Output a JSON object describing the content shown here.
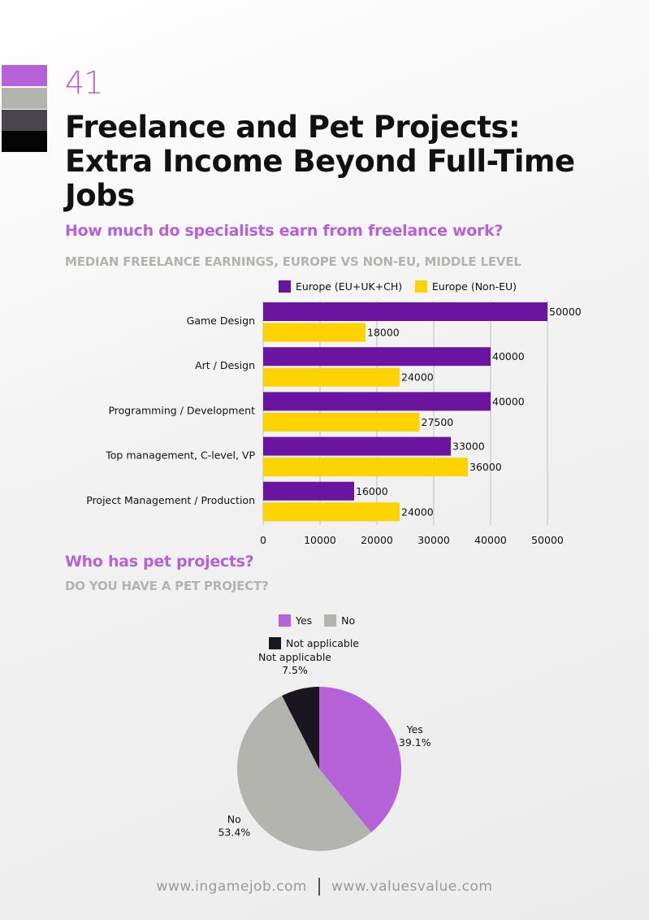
{
  "page": {
    "number": "41",
    "title": "Freelance and Pet Projects: Extra Income Beyond Full-Time Jobs",
    "swatch_colors": [
      "#b562d8",
      "#b3b3b0",
      "#4a454c",
      "#050505"
    ]
  },
  "freelance": {
    "heading": "How much do specialists earn from freelance work?",
    "subheading": "MEDIAN FREELANCE EARNINGS, EUROPE VS NON-EU, MIDDLE LEVEL"
  },
  "pet": {
    "heading": "Who has pet projects?",
    "subheading": "DO YOU HAVE A PET PROJECT?"
  },
  "footer": {
    "left": "www.ingamejob.com",
    "right": "www.valuesvalue.com"
  },
  "chart_data": [
    {
      "type": "bar",
      "orientation": "horizontal",
      "title": "MEDIAN FREELANCE EARNINGS, EUROPE VS NON-EU, MIDDLE LEVEL",
      "categories": [
        "Game Design",
        "Art / Design",
        "Programming / Development",
        "Top management, C-level, VP",
        "Project Management / Production"
      ],
      "series": [
        {
          "name": "Europe (EU+UK+CH)",
          "color": "#6a14a0",
          "values": [
            50000,
            40000,
            40000,
            33000,
            16000
          ]
        },
        {
          "name": "Europe (Non-EU)",
          "color": "#fcd200",
          "values": [
            18000,
            24000,
            27500,
            36000,
            24000
          ]
        }
      ],
      "xlim": [
        0,
        50000
      ],
      "xticks": [
        "0",
        "10000",
        "20000",
        "30000",
        "40000",
        "50000"
      ],
      "xtick_values": [
        0,
        10000,
        20000,
        30000,
        40000,
        50000
      ],
      "grid": true,
      "legend": "top-right",
      "data_labels": true
    },
    {
      "type": "pie",
      "title": "DO YOU HAVE A PET PROJECT?",
      "slices": [
        {
          "label": "Yes",
          "value": 39.1,
          "display": "39.1%",
          "color": "#b562d8"
        },
        {
          "label": "No",
          "value": 53.4,
          "display": "53.4%",
          "color": "#b3b3b0"
        },
        {
          "label": "Not applicable",
          "value": 7.5,
          "display": "7.5%",
          "color": "#1a1620"
        }
      ],
      "legend": "top"
    }
  ]
}
